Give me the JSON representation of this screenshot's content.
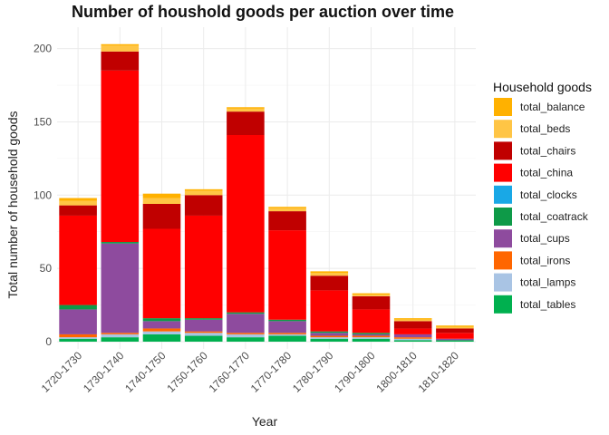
{
  "chart_data": {
    "type": "bar",
    "stacked": true,
    "title": "Number of houshold goods per auction over time",
    "xlabel": "Year",
    "ylabel": "Total number of household goods",
    "ylim": [
      0,
      210
    ],
    "yticks": [
      0,
      50,
      100,
      150,
      200
    ],
    "grid": true,
    "legend_position": "right",
    "legend_title": "Household goods",
    "categories": [
      "1720-1730",
      "1730-1740",
      "1740-1750",
      "1750-1760",
      "1760-1770",
      "1770-1780",
      "1780-1790",
      "1790-1800",
      "1800-1810",
      "1810-1820"
    ],
    "series": [
      {
        "name": "total_tables",
        "color": "#00b04f",
        "values": [
          2,
          3,
          5,
          4,
          3,
          4,
          2,
          2,
          1,
          1
        ]
      },
      {
        "name": "total_lamps",
        "color": "#a9c4e4",
        "values": [
          1,
          2,
          2,
          2,
          2,
          1,
          1,
          1,
          1,
          0
        ]
      },
      {
        "name": "total_irons",
        "color": "#ff6600",
        "values": [
          2,
          1,
          2,
          1,
          1,
          1,
          1,
          1,
          1,
          0
        ]
      },
      {
        "name": "total_cups",
        "color": "#8e4b9e",
        "values": [
          17,
          61,
          5,
          8,
          13,
          8,
          2,
          1,
          2,
          1
        ]
      },
      {
        "name": "total_coatrack",
        "color": "#0e9a48",
        "values": [
          3,
          1,
          2,
          1,
          1,
          1,
          1,
          1,
          0,
          0
        ]
      },
      {
        "name": "total_clocks",
        "color": "#19a8e6",
        "values": [
          0,
          0,
          0,
          0,
          0,
          0,
          0,
          0,
          0,
          0
        ]
      },
      {
        "name": "total_china",
        "color": "#ff0000",
        "values": [
          61,
          117,
          61,
          70,
          121,
          61,
          28,
          16,
          4,
          4
        ]
      },
      {
        "name": "total_chairs",
        "color": "#c00000",
        "values": [
          7,
          13,
          17,
          14,
          16,
          13,
          10,
          9,
          5,
          3
        ]
      },
      {
        "name": "total_beds",
        "color": "#ffc545",
        "values": [
          3,
          4,
          4,
          3,
          2,
          2,
          2,
          1,
          1,
          1
        ]
      },
      {
        "name": "total_balance",
        "color": "#ffb100",
        "values": [
          2,
          1,
          3,
          1,
          1,
          1,
          1,
          1,
          1,
          1
        ]
      }
    ]
  }
}
